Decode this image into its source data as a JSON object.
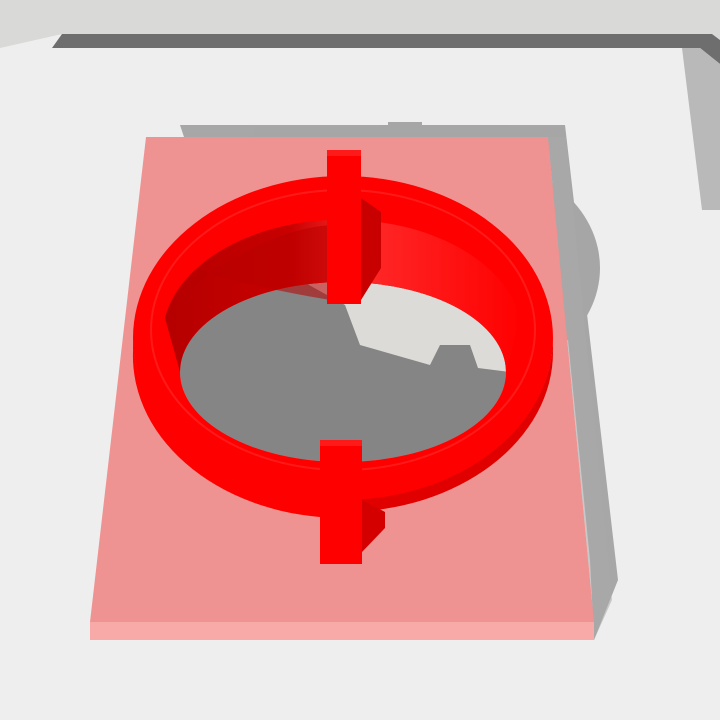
{
  "scene": {
    "kind": "3d-render",
    "colors": {
      "background_top": "#d9d9d7",
      "plate_gray": "#eeeeee",
      "plate_edge": "#6e6e6e",
      "shadow": "#8a8a8a",
      "base_pink": "#ee9391",
      "base_pink_edge": "#f7aaa8",
      "ring_red": "#ff0000",
      "ring_dark": "#b80000",
      "hole_gray": "#858585",
      "hole_light": "#dcdbd8"
    }
  }
}
